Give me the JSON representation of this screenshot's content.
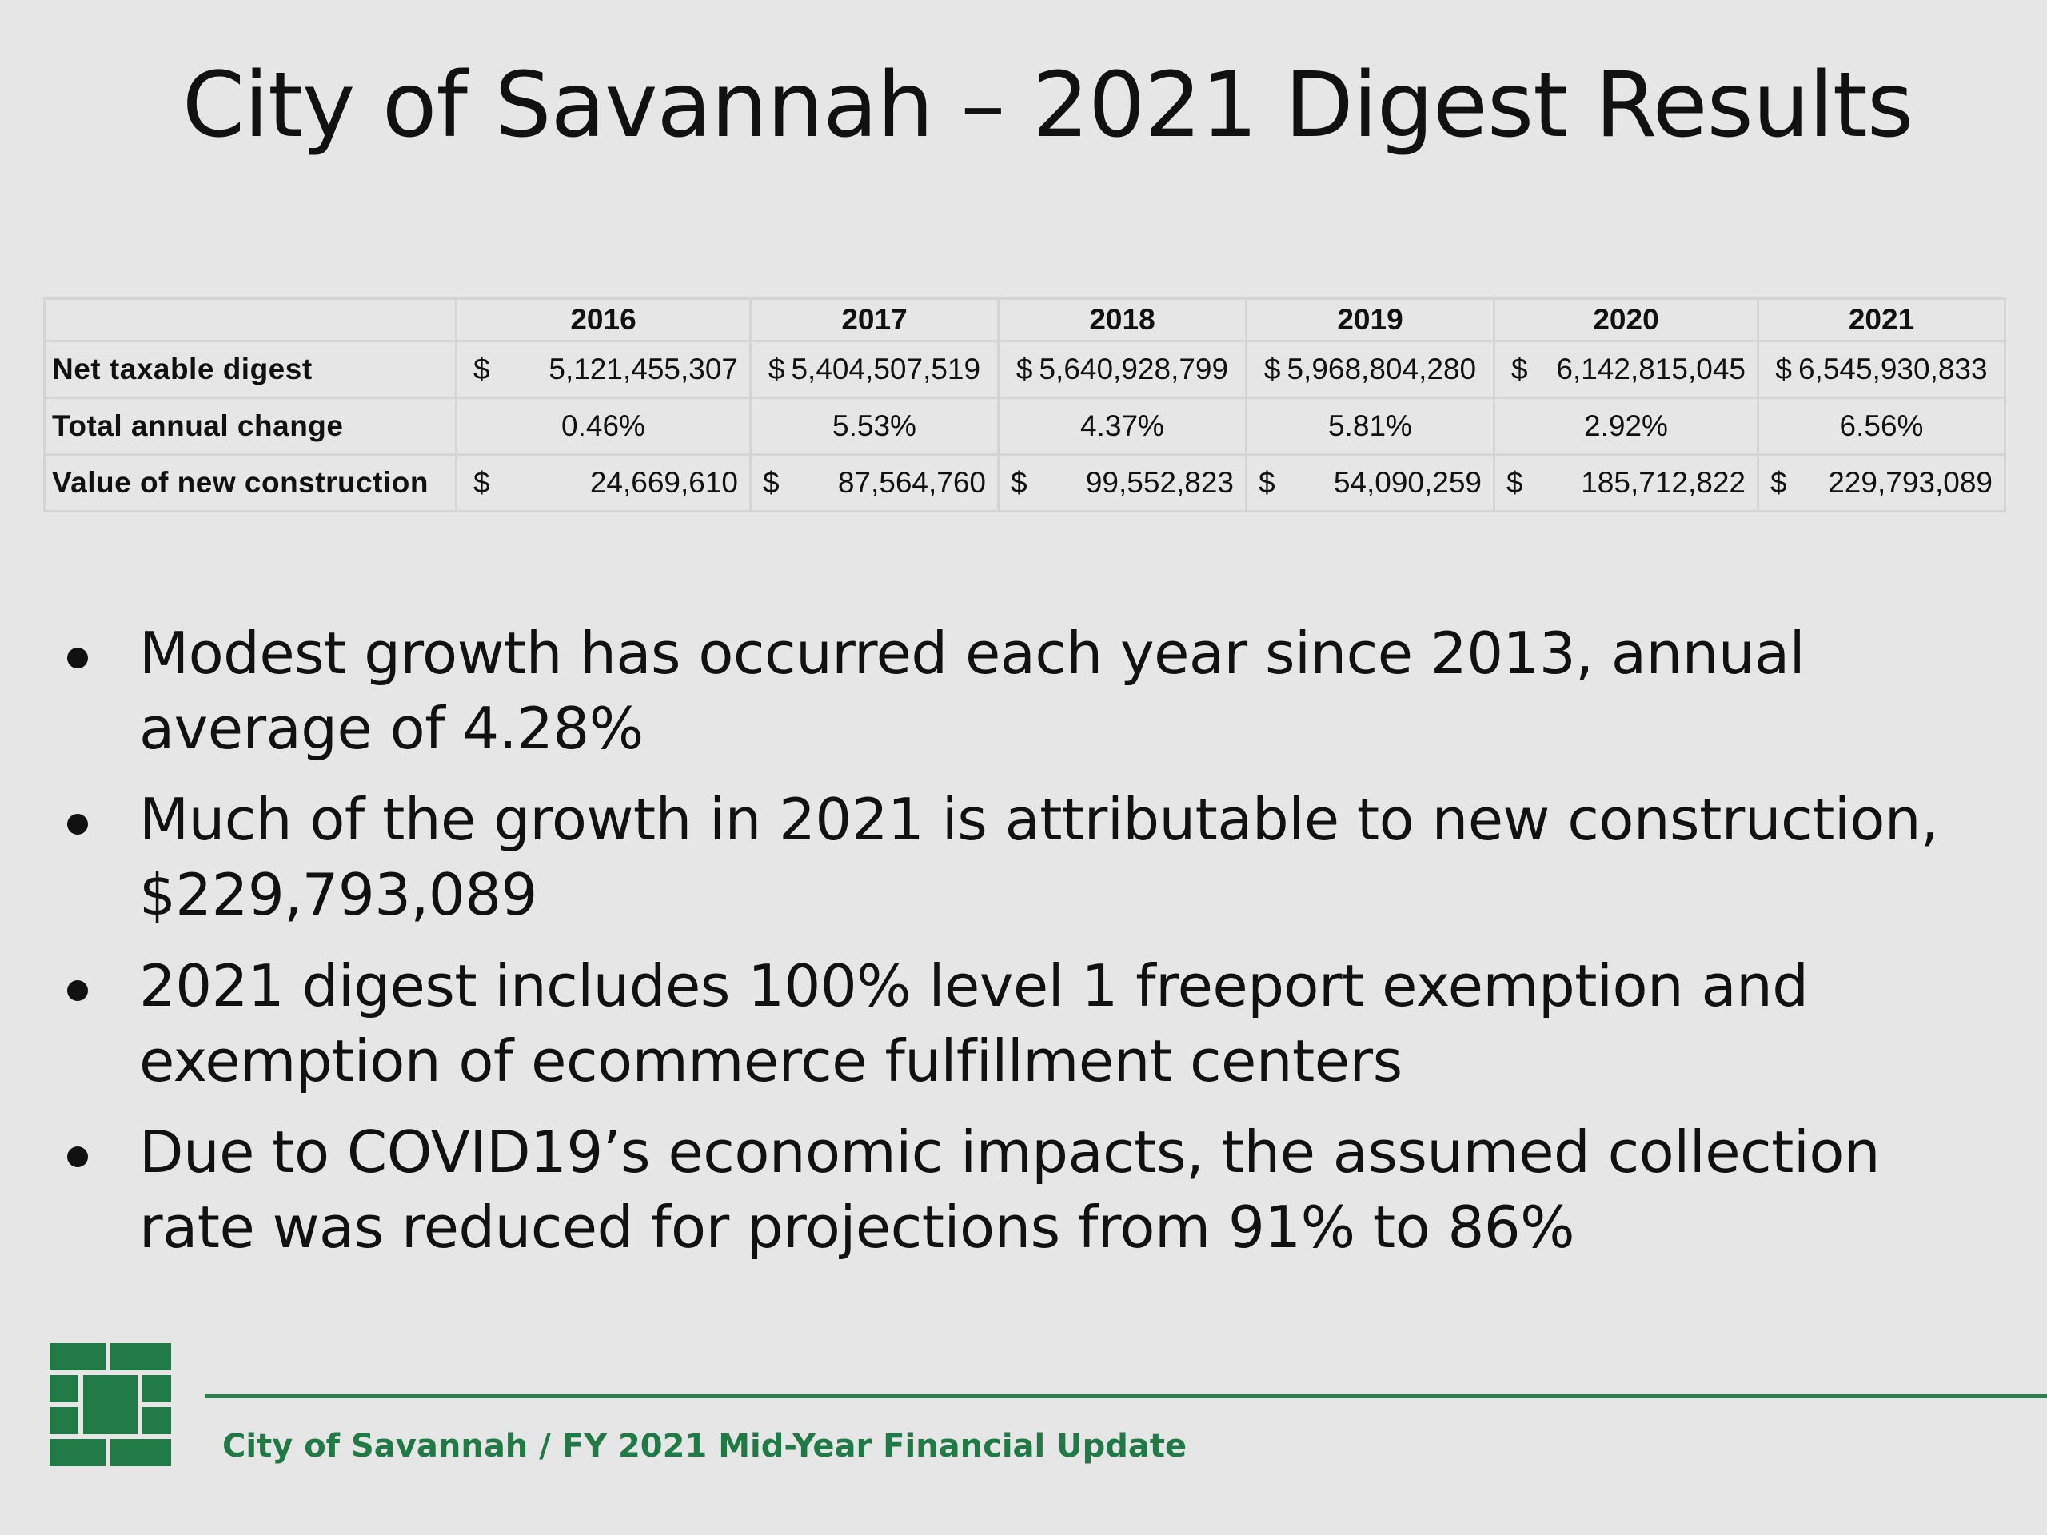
{
  "slide": {
    "title": "City of Savannah – 2021 Digest Results"
  },
  "table": {
    "headers": [
      "",
      "2016",
      "2017",
      "2018",
      "2019",
      "2020",
      "2021"
    ],
    "rows": {
      "net_taxable_digest": {
        "label": "Net taxable digest",
        "cells": [
          {
            "cur": "$",
            "amt": "5,121,455,307"
          },
          {
            "cur": "$",
            "amt": "5,404,507,519"
          },
          {
            "cur": "$",
            "amt": "5,640,928,799"
          },
          {
            "cur": "$",
            "amt": "5,968,804,280"
          },
          {
            "cur": "$",
            "amt": "6,142,815,045"
          },
          {
            "cur": "$",
            "amt": "6,545,930,833"
          }
        ]
      },
      "total_annual_change": {
        "label": "Total annual change",
        "cells": [
          "0.46%",
          "5.53%",
          "4.37%",
          "5.81%",
          "2.92%",
          "6.56%"
        ]
      },
      "value_new_construction": {
        "label": "Value of new construction",
        "cells": [
          {
            "cur": "$",
            "amt": "24,669,610"
          },
          {
            "cur": "$",
            "amt": "87,564,760"
          },
          {
            "cur": "$",
            "amt": "99,552,823"
          },
          {
            "cur": "$",
            "amt": "54,090,259"
          },
          {
            "cur": "$",
            "amt": "185,712,822"
          },
          {
            "cur": "$",
            "amt": "229,793,089"
          }
        ]
      }
    }
  },
  "bullets": [
    "Modest growth has occurred each year since 2013, annual average of 4.28%",
    "Much of the growth in 2021 is attributable to new construction, $229,793,089",
    "2021 digest includes 100% level 1 freeport exemption and exemption of ecommerce fulfillment centers",
    "Due to COVID19’s economic impacts, the assumed collection rate was reduced for projections from 91% to 86%"
  ],
  "footer": {
    "text": "City of Savannah / FY 2021 Mid-Year Financial Update",
    "logo_icon": "city-brick-logo-icon",
    "accent_color": "#2e7d4f"
  }
}
